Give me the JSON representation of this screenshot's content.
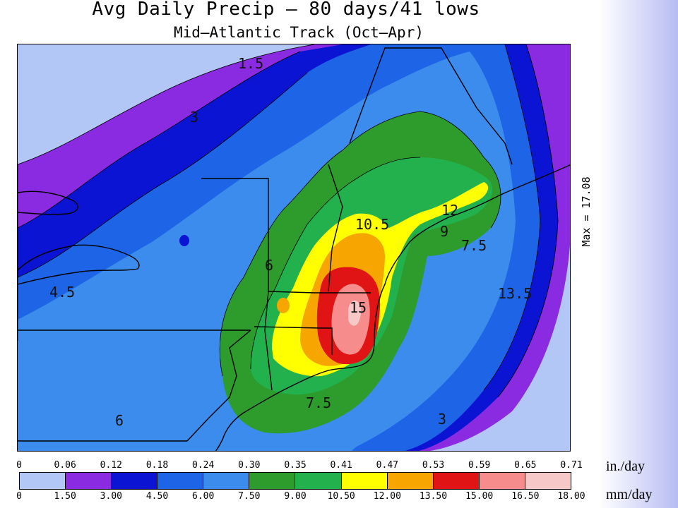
{
  "title": "Avg Daily Precip – 80 days/41 lows",
  "subtitle": "Mid–Atlantic Track (Oct–Apr)",
  "max_label": "Max =  17.08",
  "legend": {
    "in_unit": "in./day",
    "mm_unit": "mm/day",
    "in_ticks": [
      "0",
      "0.06",
      "0.12",
      "0.18",
      "0.24",
      "0.30",
      "0.35",
      "0.41",
      "0.47",
      "0.53",
      "0.59",
      "0.65",
      "0.71"
    ],
    "mm_ticks": [
      "0",
      "1.50",
      "3.00",
      "4.50",
      "6.00",
      "7.50",
      "9.00",
      "10.50",
      "12.00",
      "13.50",
      "15.00",
      "16.50",
      "18.00"
    ],
    "colors": [
      "#b3c7f7",
      "#8a2be2",
      "#0a14d2",
      "#1e64e6",
      "#3c8cee",
      "#2d9c2d",
      "#22b14c",
      "#ffff00",
      "#f7a500",
      "#e01414",
      "#f78c8c",
      "#f7c8c8"
    ]
  },
  "contour_labels": {
    "l15": "1.5",
    "l3": "3",
    "l45": "4.5",
    "l6": "6",
    "l6b": "6",
    "l75": "7.5",
    "l75b": "7.5",
    "l9": "9",
    "l10": "10.5",
    "l12": "12",
    "l15b": "15",
    "l135": "13.5",
    "l3b": "3"
  }
}
